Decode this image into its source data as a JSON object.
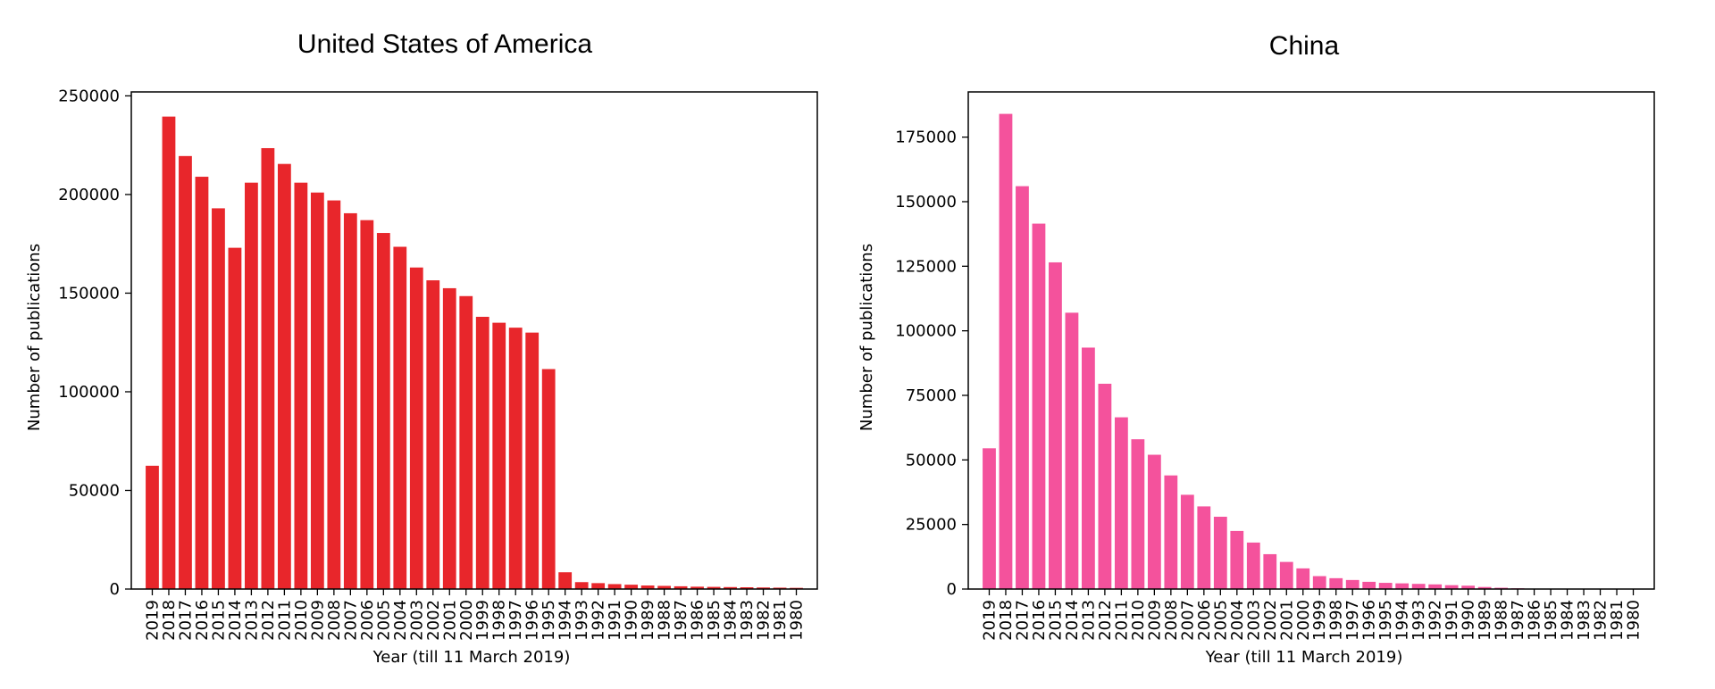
{
  "chart_data": [
    {
      "type": "bar",
      "title": "United States of America",
      "xlabel": "Year (till 11 March 2019)",
      "ylabel": "Number of publications",
      "color": "#e8262b",
      "ylim": [
        0,
        252000
      ],
      "yticks": [
        0,
        50000,
        100000,
        150000,
        200000,
        250000
      ],
      "grid": false,
      "categories": [
        "2019",
        "2018",
        "2017",
        "2016",
        "2015",
        "2014",
        "2013",
        "2012",
        "2011",
        "2010",
        "2009",
        "2008",
        "2007",
        "2006",
        "2005",
        "2004",
        "2003",
        "2002",
        "2001",
        "2000",
        "1999",
        "1998",
        "1997",
        "1996",
        "1995",
        "1994",
        "1993",
        "1992",
        "1991",
        "1990",
        "1989",
        "1988",
        "1987",
        "1986",
        "1985",
        "1984",
        "1983",
        "1982",
        "1981",
        "1980"
      ],
      "values": [
        62500,
        239500,
        219500,
        209000,
        193000,
        173000,
        206000,
        223500,
        215500,
        206000,
        201000,
        197000,
        190500,
        187000,
        180500,
        173500,
        163000,
        156500,
        152500,
        148500,
        138000,
        135000,
        132500,
        130000,
        111500,
        8500,
        3500,
        3000,
        2500,
        2200,
        1800,
        1600,
        1400,
        1200,
        1100,
        1000,
        900,
        800,
        700,
        600
      ]
    },
    {
      "type": "bar",
      "title": "China",
      "xlabel": "Year (till 11 March 2019)",
      "ylabel": "Number of publications",
      "color": "#f4529c",
      "ylim": [
        0,
        192500
      ],
      "yticks": [
        0,
        25000,
        50000,
        75000,
        100000,
        125000,
        150000,
        175000
      ],
      "grid": false,
      "categories": [
        "2019",
        "2018",
        "2017",
        "2016",
        "2015",
        "2014",
        "2013",
        "2012",
        "2011",
        "2010",
        "2009",
        "2008",
        "2007",
        "2006",
        "2005",
        "2004",
        "2003",
        "2002",
        "2001",
        "2000",
        "1999",
        "1998",
        "1997",
        "1996",
        "1995",
        "1994",
        "1993",
        "1992",
        "1991",
        "1990",
        "1989",
        "1988",
        "1987",
        "1986",
        "1985",
        "1984",
        "1983",
        "1982",
        "1981",
        "1980"
      ],
      "values": [
        54500,
        184000,
        156000,
        141500,
        126500,
        107000,
        93500,
        79500,
        66500,
        58000,
        52000,
        44000,
        36500,
        32000,
        28000,
        22500,
        18000,
        13500,
        10500,
        8000,
        5000,
        4200,
        3500,
        2800,
        2400,
        2200,
        2000,
        1800,
        1500,
        1300,
        800,
        500,
        300,
        150,
        100,
        80,
        60,
        40,
        30,
        20
      ]
    }
  ]
}
